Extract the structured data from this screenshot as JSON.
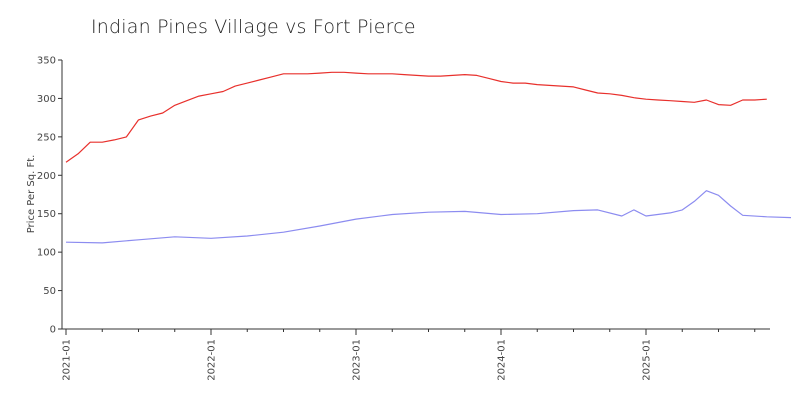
{
  "chart_data": {
    "type": "line",
    "title": "Indian Pines Village vs Fort Pierce",
    "xlabel": "",
    "ylabel": "Price Per Sq. Ft.",
    "ylim": [
      0,
      350
    ],
    "yticks": [
      0,
      50,
      100,
      150,
      200,
      250,
      300,
      350
    ],
    "xticks": [
      "2021-01",
      "2022-01",
      "2023-01",
      "2024-01",
      "2025-01"
    ],
    "xrange": [
      "2021-01",
      "2025-10"
    ],
    "grid": false,
    "legend": "none",
    "colors": {
      "series_a": "#e8302c",
      "series_b": "#8c8cf0"
    },
    "series": [
      {
        "color": "#e8302c",
        "points": [
          [
            "2021-01",
            217
          ],
          [
            "2021-02",
            228
          ],
          [
            "2021-03",
            243
          ],
          [
            "2021-04",
            243
          ],
          [
            "2021-05",
            246
          ],
          [
            "2021-06",
            250
          ],
          [
            "2021-07",
            272
          ],
          [
            "2021-08",
            277
          ],
          [
            "2021-09",
            281
          ],
          [
            "2021-10",
            291
          ],
          [
            "2021-11",
            297
          ],
          [
            "2021-12",
            303
          ],
          [
            "2022-01",
            306
          ],
          [
            "2022-02",
            309
          ],
          [
            "2022-03",
            316
          ],
          [
            "2022-04",
            320
          ],
          [
            "2022-05",
            324
          ],
          [
            "2022-06",
            328
          ],
          [
            "2022-07",
            332
          ],
          [
            "2022-08",
            332
          ],
          [
            "2022-09",
            332
          ],
          [
            "2022-10",
            333
          ],
          [
            "2022-11",
            334
          ],
          [
            "2022-12",
            334
          ],
          [
            "2023-01",
            333
          ],
          [
            "2023-02",
            332
          ],
          [
            "2023-03",
            332
          ],
          [
            "2023-04",
            332
          ],
          [
            "2023-05",
            331
          ],
          [
            "2023-06",
            330
          ],
          [
            "2023-07",
            329
          ],
          [
            "2023-08",
            329
          ],
          [
            "2023-09",
            330
          ],
          [
            "2023-10",
            331
          ],
          [
            "2023-11",
            330
          ],
          [
            "2023-12",
            326
          ],
          [
            "2024-01",
            322
          ],
          [
            "2024-02",
            320
          ],
          [
            "2024-03",
            320
          ],
          [
            "2024-04",
            318
          ],
          [
            "2024-05",
            317
          ],
          [
            "2024-06",
            316
          ],
          [
            "2024-07",
            315
          ],
          [
            "2024-08",
            311
          ],
          [
            "2024-09",
            307
          ],
          [
            "2024-10",
            306
          ],
          [
            "2024-11",
            304
          ],
          [
            "2024-12",
            301
          ],
          [
            "2025-01",
            299
          ],
          [
            "2025-02",
            298
          ],
          [
            "2025-03",
            297
          ],
          [
            "2025-04",
            296
          ],
          [
            "2025-05",
            295
          ],
          [
            "2025-06",
            298
          ],
          [
            "2025-07",
            292
          ],
          [
            "2025-08",
            291
          ],
          [
            "2025-09",
            298
          ],
          [
            "2025-10",
            298
          ],
          [
            "2025-11",
            299
          ]
        ]
      },
      {
        "color": "#8c8cf0",
        "points": [
          [
            "2021-01",
            113
          ],
          [
            "2021-04",
            112
          ],
          [
            "2021-07",
            116
          ],
          [
            "2021-10",
            120
          ],
          [
            "2022-01",
            118
          ],
          [
            "2022-04",
            121
          ],
          [
            "2022-07",
            126
          ],
          [
            "2022-10",
            134
          ],
          [
            "2023-01",
            143
          ],
          [
            "2023-04",
            149
          ],
          [
            "2023-07",
            152
          ],
          [
            "2023-10",
            153
          ],
          [
            "2024-01",
            149
          ],
          [
            "2024-04",
            150
          ],
          [
            "2024-07",
            154
          ],
          [
            "2024-09",
            155
          ],
          [
            "2024-11",
            147
          ],
          [
            "2024-12",
            155
          ],
          [
            "2025-01",
            147
          ],
          [
            "2025-03",
            151
          ],
          [
            "2025-04",
            155
          ],
          [
            "2025-05",
            166
          ],
          [
            "2025-06",
            180
          ],
          [
            "2025-07",
            174
          ],
          [
            "2025-08",
            160
          ],
          [
            "2025-09",
            148
          ],
          [
            "2025-11",
            146
          ],
          [
            "2026-01",
            145
          ]
        ]
      }
    ]
  }
}
